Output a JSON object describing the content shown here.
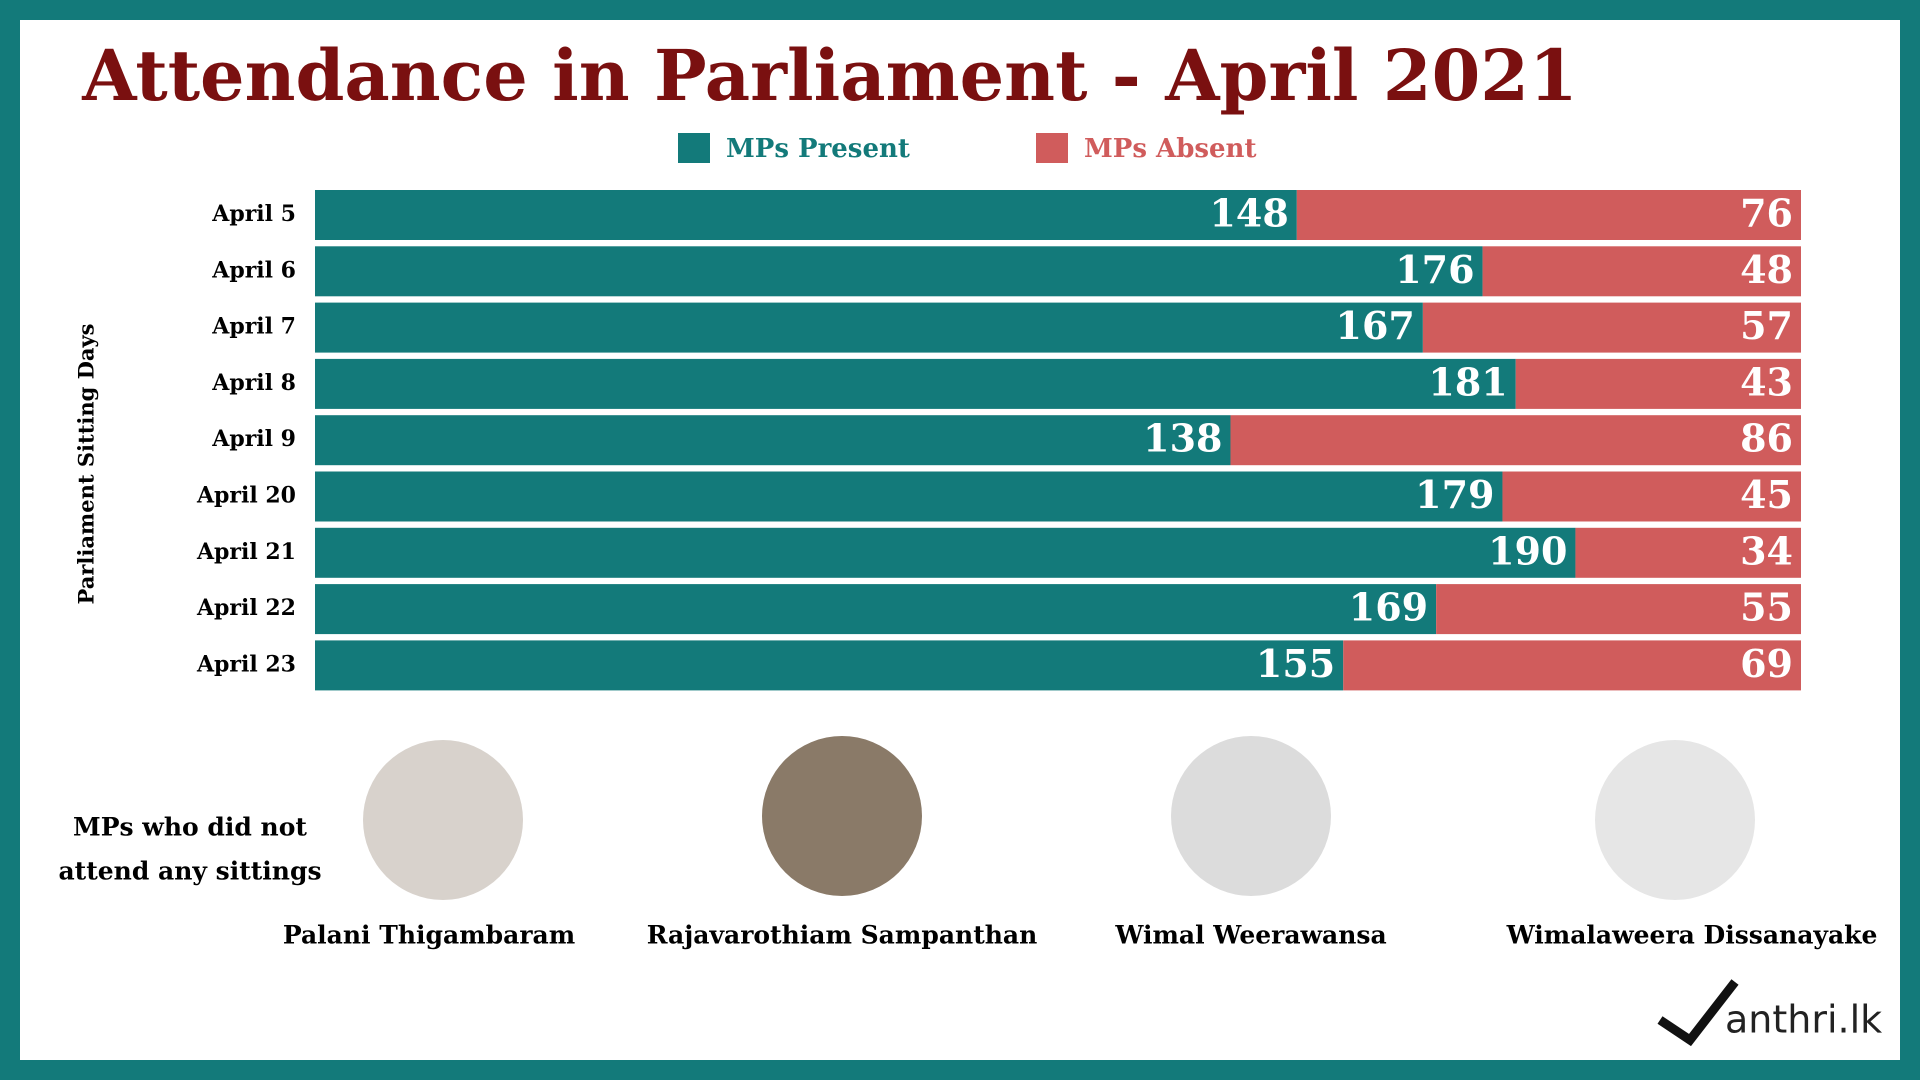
{
  "chart_data": {
    "type": "stacked-bar-horizontal",
    "title": "Attendance in Parliament - April 2021",
    "y_label": "Parliament  Sitting Days",
    "categories": [
      "April 5",
      "April 6",
      "April 7",
      "April 8",
      "April 9",
      "April 20",
      "April 21",
      "April 22",
      "April 23"
    ],
    "series": [
      {
        "name": "MPs Present",
        "color": "#137a7a",
        "values": [
          148,
          176,
          167,
          181,
          138,
          179,
          190,
          169,
          155
        ]
      },
      {
        "name": "MPs Absent",
        "color": "#d05c5c",
        "values": [
          76,
          48,
          57,
          43,
          86,
          45,
          34,
          55,
          69
        ]
      }
    ],
    "xlim": [
      0,
      224
    ]
  },
  "absentees": {
    "caption": [
      "MPs who did not",
      "attend any sittings"
    ],
    "names": [
      "Palani Thigambaram",
      "Rajavarothiam Sampanthan",
      "Wimal Weerawansa",
      "Wimalaweera Dissanayake"
    ]
  },
  "logo": "anthri.lk"
}
